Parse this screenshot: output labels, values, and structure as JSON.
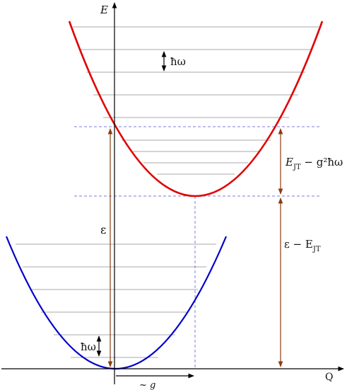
{
  "labels": {
    "energy_axis": "E",
    "coordinate_axis": "Q",
    "quantum_upper": "ħω",
    "quantum_lower": "ħω",
    "epsilon": "ε",
    "displacement": "~ g",
    "jt_difference_E": "E",
    "jt_difference_sub": "JT",
    "jt_difference_rest": " − g²ħω",
    "eps_minus_E": "ε − E",
    "eps_minus_sub": "JT"
  },
  "colors": {
    "upper_curve": "#e00000",
    "lower_curve": "#0000cc",
    "arrows": "#8a3c10",
    "guides": "#7b7be0",
    "levels": "#8c8c8c",
    "axes": "#000000"
  }
}
